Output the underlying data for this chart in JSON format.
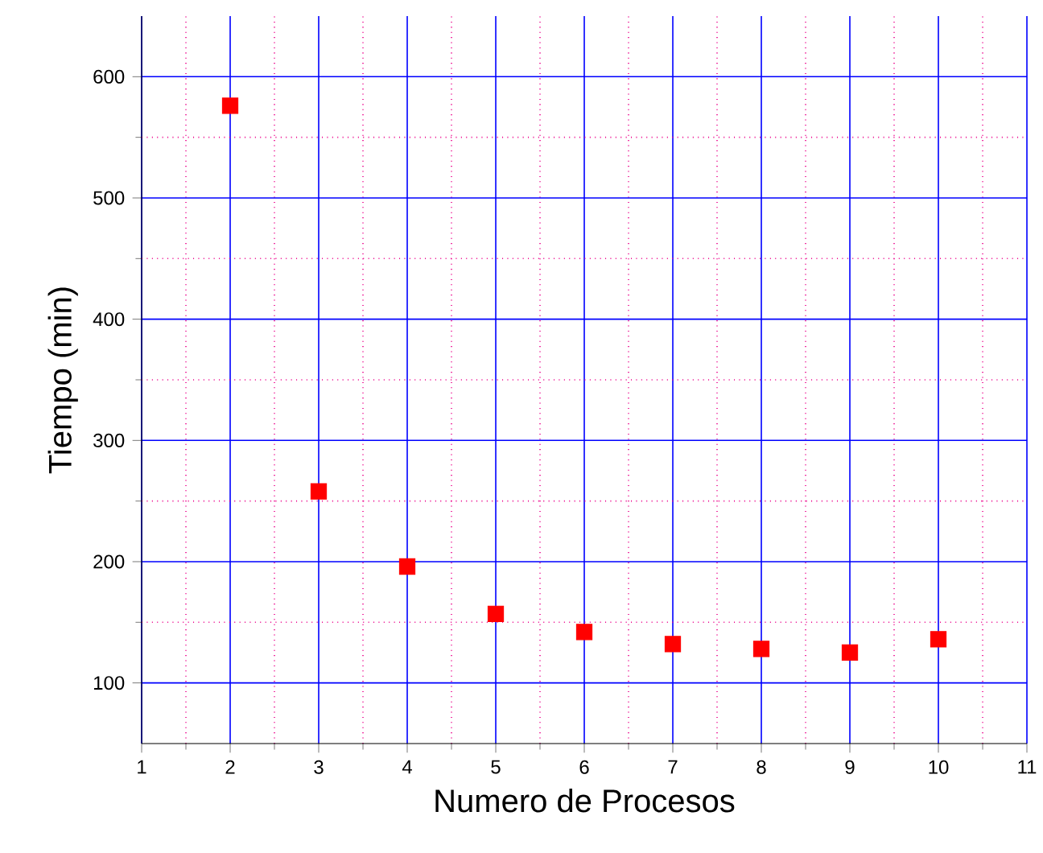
{
  "chart_data": {
    "type": "scatter",
    "xlabel": "Numero de Procesos",
    "ylabel": "Tiempo (min)",
    "x": [
      2,
      3,
      4,
      5,
      6,
      7,
      8,
      9,
      10
    ],
    "series": [
      {
        "color": "#ff0000",
        "values": [
          576,
          258,
          196,
          157,
          142,
          132,
          128,
          125,
          136
        ]
      }
    ],
    "marker": "square",
    "xlim": [
      1,
      11
    ],
    "xticks": [
      1,
      {
        "value": 1.5,
        "label": null
      },
      2,
      {
        "value": 2.5,
        "label": null
      },
      3,
      {
        "value": 3.5,
        "label": null
      },
      4,
      {
        "value": 4.5,
        "label": null
      },
      5,
      {
        "value": 5.5,
        "label": null
      },
      6,
      {
        "value": 6.5,
        "label": null
      },
      7,
      {
        "value": 7.5,
        "label": null
      },
      8,
      {
        "value": 8.5,
        "label": null
      },
      9,
      {
        "value": 9.5,
        "label": null
      },
      10,
      {
        "value": 10.5,
        "label": null
      },
      11
    ],
    "ylim": [
      50,
      650
    ],
    "yticks": [
      100,
      {
        "value": 150,
        "label": null
      },
      200,
      {
        "value": 250,
        "label": null
      },
      300,
      {
        "value": 350,
        "label": null
      },
      400,
      {
        "value": 450,
        "label": null
      },
      500,
      {
        "value": 550,
        "label": null
      },
      600
    ],
    "grid": true
  }
}
